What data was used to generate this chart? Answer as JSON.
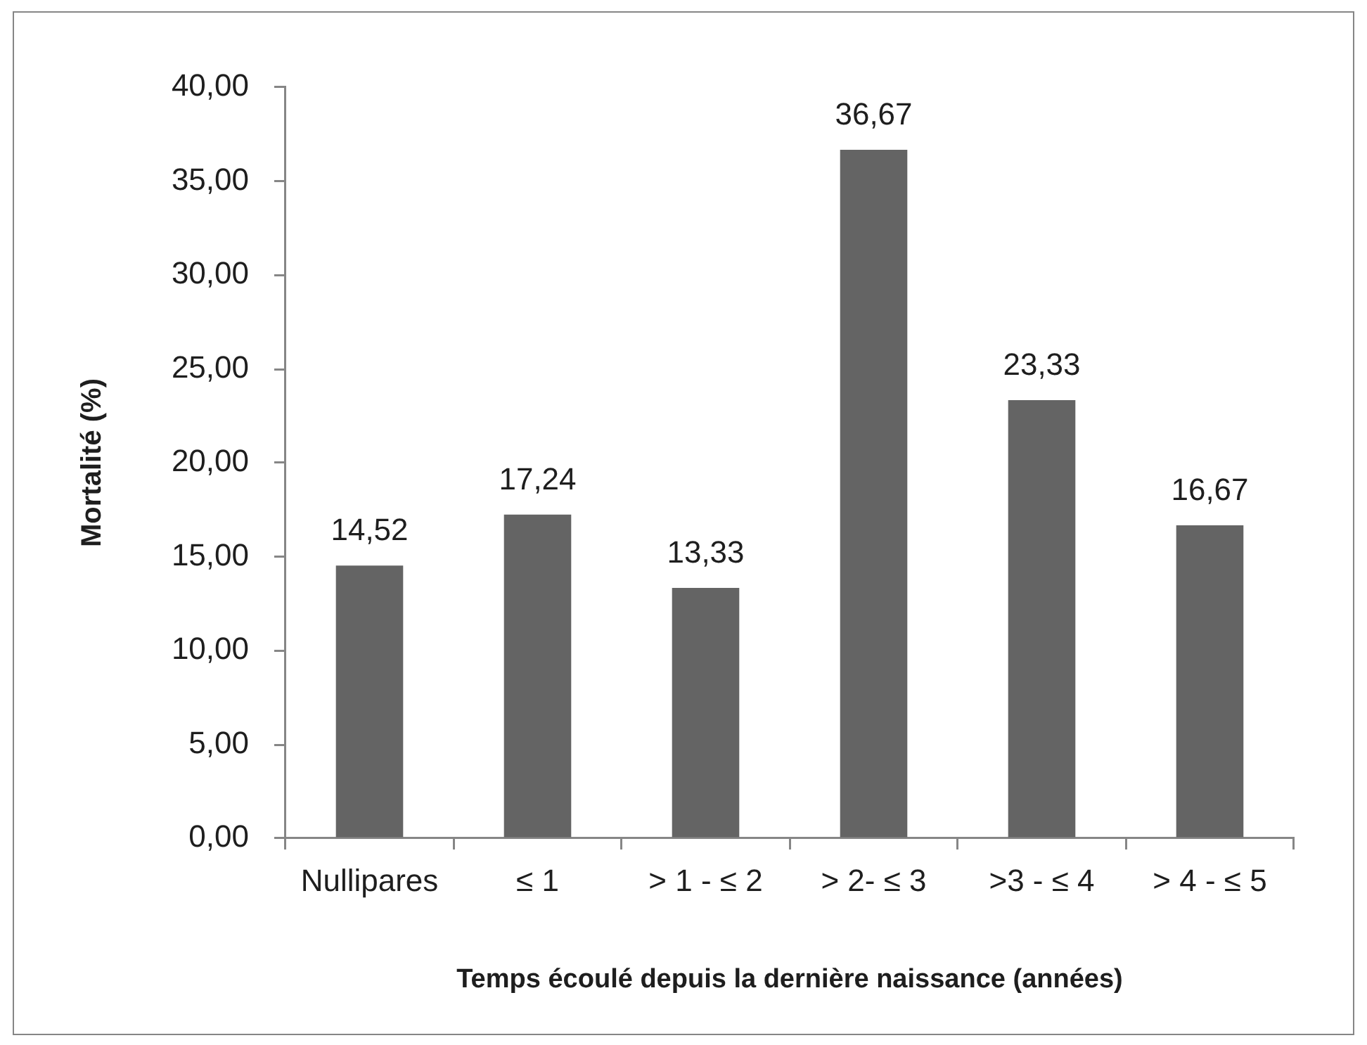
{
  "chart_data": {
    "type": "bar",
    "xlabel": "Temps écoulé depuis la dernière naissance (années)",
    "ylabel": "Mortalité (%)",
    "categories": [
      "Nullipares",
      "≤ 1",
      "> 1 - ≤ 2",
      "> 2- ≤ 3",
      ">3 - ≤ 4",
      "> 4 - ≤ 5"
    ],
    "values": [
      14.52,
      17.24,
      13.33,
      36.67,
      23.33,
      16.67
    ],
    "value_labels": [
      "14,52",
      "17,24",
      "13,33",
      "36,67",
      "23,33",
      "16,67"
    ],
    "color": "#646464",
    "ylim": [
      0,
      40
    ],
    "yticks": [
      {
        "value": 0,
        "label": "0,00"
      },
      {
        "value": 5,
        "label": "5,00"
      },
      {
        "value": 10,
        "label": "10,00"
      },
      {
        "value": 15,
        "label": "15,00"
      },
      {
        "value": 20,
        "label": "20,00"
      },
      {
        "value": 25,
        "label": "25,00"
      },
      {
        "value": 30,
        "label": "30,00"
      },
      {
        "value": 35,
        "label": "35,00"
      },
      {
        "value": 40,
        "label": "40,00"
      }
    ]
  }
}
